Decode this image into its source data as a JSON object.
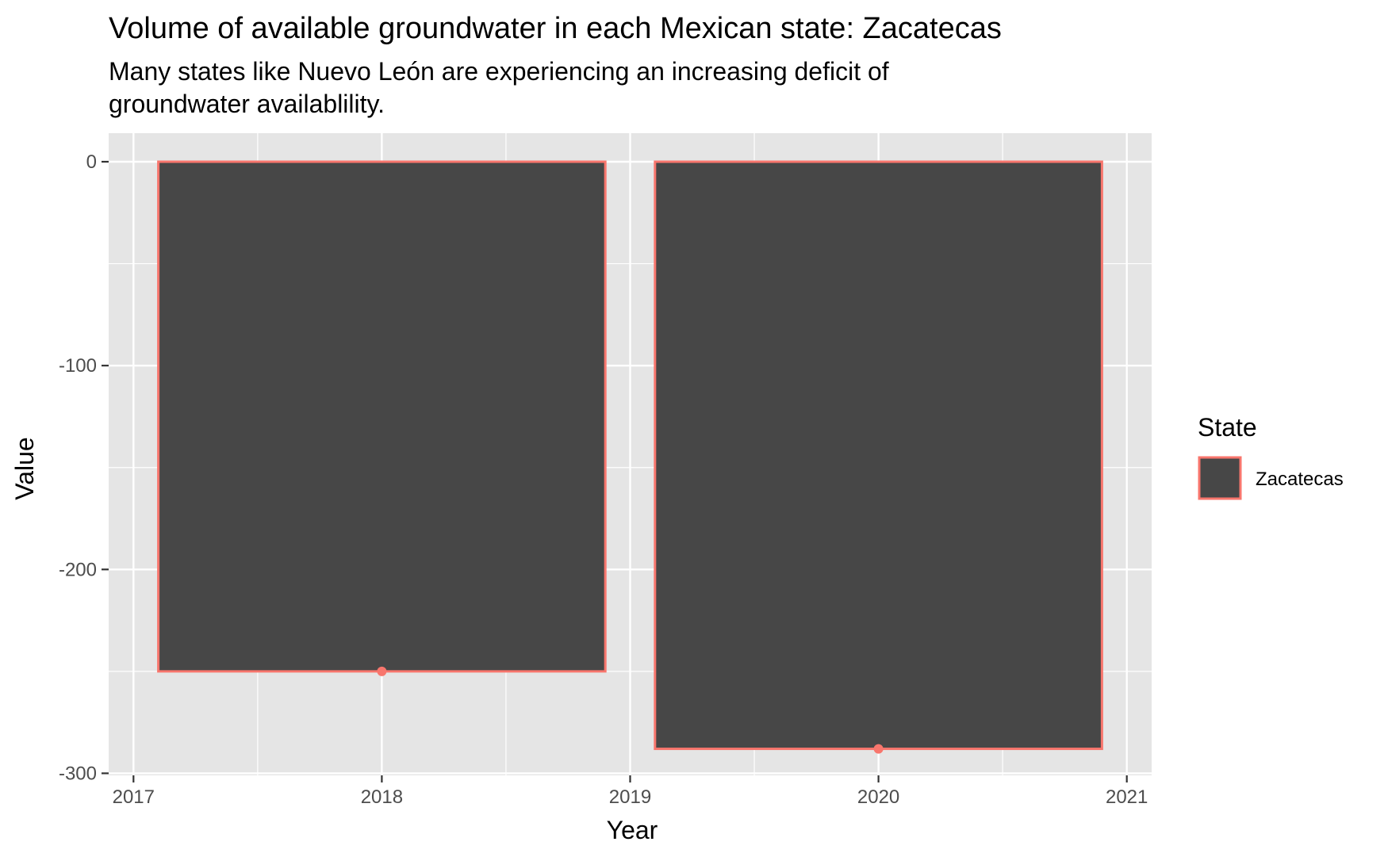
{
  "chart_data": {
    "type": "bar",
    "title": "Volume of available groundwater in each Mexican state: Zacatecas",
    "subtitle_lines": [
      "Many states like Nuevo León are experiencing an increasing deficit of",
      "groundwater availablility."
    ],
    "xlabel": "Year",
    "ylabel": "Value",
    "x": [
      2018,
      2020
    ],
    "series": [
      {
        "name": "Zacatecas",
        "values": [
          -250,
          -288
        ]
      }
    ],
    "bar_width_years": 1.8,
    "xlim": [
      2016.9,
      2021.1
    ],
    "ylim": [
      -301,
      14
    ],
    "x_ticks": [
      2017,
      2018,
      2019,
      2020,
      2021
    ],
    "y_ticks": [
      0,
      -100,
      -200,
      -300
    ],
    "grid": true,
    "legend": {
      "title": "State",
      "placement": "right",
      "entries": [
        "Zacatecas"
      ]
    },
    "colors": {
      "panel": "#e5e5e5",
      "grid": "#ffffff",
      "bar_fill": "#474747",
      "bar_outline": "#f8766d",
      "point": "#f8766d",
      "tick_label": "#4d4d4d",
      "tick_mark": "#333333"
    }
  }
}
